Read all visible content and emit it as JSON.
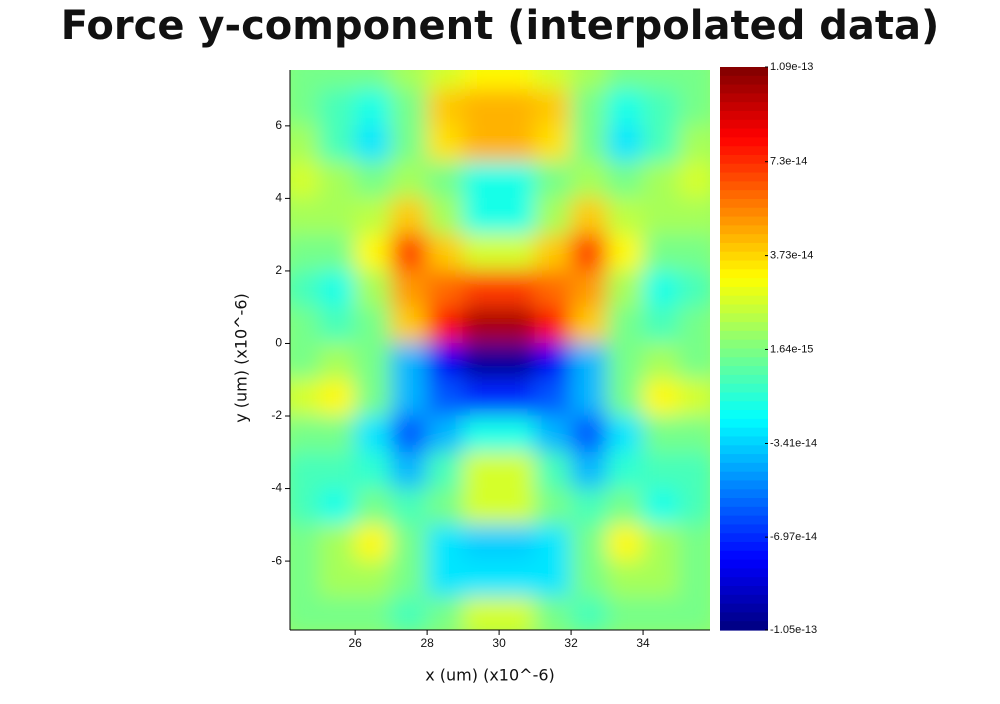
{
  "chart_data": {
    "type": "heatmap",
    "title": "Force y-component (interpolated data)",
    "xlabel": "x (um) (x10^-6)",
    "ylabel": "y (um) (x10^-6)",
    "xlim": [
      24.19,
      35.86
    ],
    "xticks": [
      26,
      28,
      30,
      32,
      34
    ],
    "ylim": [
      -7.9,
      7.54
    ],
    "yticks": [
      -6,
      -4,
      -2,
      0,
      2,
      4,
      6
    ],
    "zlim": [
      -1.05e-13,
      1.09e-13
    ],
    "zticks": [
      1.09e-13,
      7.3e-14,
      3.73e-14,
      1.64e-15,
      -3.41e-14,
      -6.97e-14,
      -1.05e-13
    ],
    "colormap": "jet",
    "x": [
      24.5,
      25.5,
      26.5,
      27.5,
      28.5,
      29.5,
      30.5,
      31.5,
      32.5,
      33.5,
      34.5,
      35.5
    ],
    "y": [
      7.5,
      6.5,
      5.5,
      4.5,
      3.5,
      2.5,
      1.5,
      0.5,
      -0.5,
      -1.5,
      -2.5,
      -3.5,
      -4.5,
      -5.5,
      -6.5,
      -7.5
    ],
    "z": [
      [
        0,
        0,
        0,
        1e-14,
        2e-14,
        3e-14,
        3e-14,
        2e-14,
        1e-14,
        0,
        0,
        0
      ],
      [
        0,
        -1e-14,
        -2e-14,
        0,
        4e-14,
        4.5e-14,
        4.5e-14,
        4e-14,
        0,
        -2e-14,
        -1e-14,
        0
      ],
      [
        1e-14,
        -1e-14,
        -3e-14,
        0,
        3.5e-14,
        4.5e-14,
        4.5e-14,
        3.5e-14,
        0,
        -3e-14,
        -1e-14,
        1e-14
      ],
      [
        2e-14,
        1e-14,
        0,
        1e-14,
        0,
        -2e-14,
        -2e-14,
        0,
        1e-14,
        0,
        1e-14,
        2e-14
      ],
      [
        1e-14,
        1e-14,
        1.5e-14,
        4e-14,
        1e-14,
        -2e-14,
        -2e-14,
        1e-14,
        4e-14,
        1.5e-14,
        1e-14,
        1e-14
      ],
      [
        0,
        0,
        3e-14,
        7e-14,
        4e-14,
        2e-14,
        2e-14,
        4e-14,
        7e-14,
        3e-14,
        0,
        0
      ],
      [
        -1e-14,
        -2e-14,
        1e-14,
        5e-14,
        6e-14,
        7e-14,
        7e-14,
        6e-14,
        5e-14,
        1e-14,
        -2e-14,
        -1e-14
      ],
      [
        0,
        -1e-14,
        0,
        4e-14,
        8e-14,
        1e-13,
        1e-13,
        8e-14,
        4e-14,
        0,
        -1e-14,
        0
      ],
      [
        0,
        1e-14,
        0,
        -4e-14,
        -8e-14,
        -1e-13,
        -1e-13,
        -8e-14,
        -4e-14,
        0,
        1e-14,
        0
      ],
      [
        2e-14,
        3e-14,
        0,
        -4e-14,
        -6e-14,
        -7e-14,
        -7e-14,
        -6e-14,
        -4e-14,
        0,
        3e-14,
        2e-14
      ],
      [
        0,
        0,
        -3e-14,
        -6e-14,
        -4e-14,
        -2e-14,
        -2e-14,
        -4e-14,
        -6e-14,
        -3e-14,
        0,
        0
      ],
      [
        -1e-14,
        -1e-14,
        -1.5e-14,
        -4e-14,
        -1e-14,
        2e-14,
        2e-14,
        -1e-14,
        -4e-14,
        -1.5e-14,
        -1e-14,
        -1e-14
      ],
      [
        -1e-14,
        -2e-14,
        0,
        -1e-14,
        0,
        2e-14,
        2e-14,
        0,
        -1e-14,
        0,
        -2e-14,
        -1e-14
      ],
      [
        0,
        1e-14,
        3e-14,
        0,
        -3e-14,
        -3.5e-14,
        -3.5e-14,
        -3e-14,
        0,
        3e-14,
        1e-14,
        0
      ],
      [
        0,
        1e-14,
        1e-14,
        0,
        -3e-14,
        -3e-14,
        -3e-14,
        -3e-14,
        0,
        1e-14,
        1e-14,
        0
      ],
      [
        0,
        0,
        0,
        -1e-14,
        0,
        2e-14,
        2e-14,
        0,
        -1e-14,
        0,
        0,
        0
      ]
    ]
  }
}
